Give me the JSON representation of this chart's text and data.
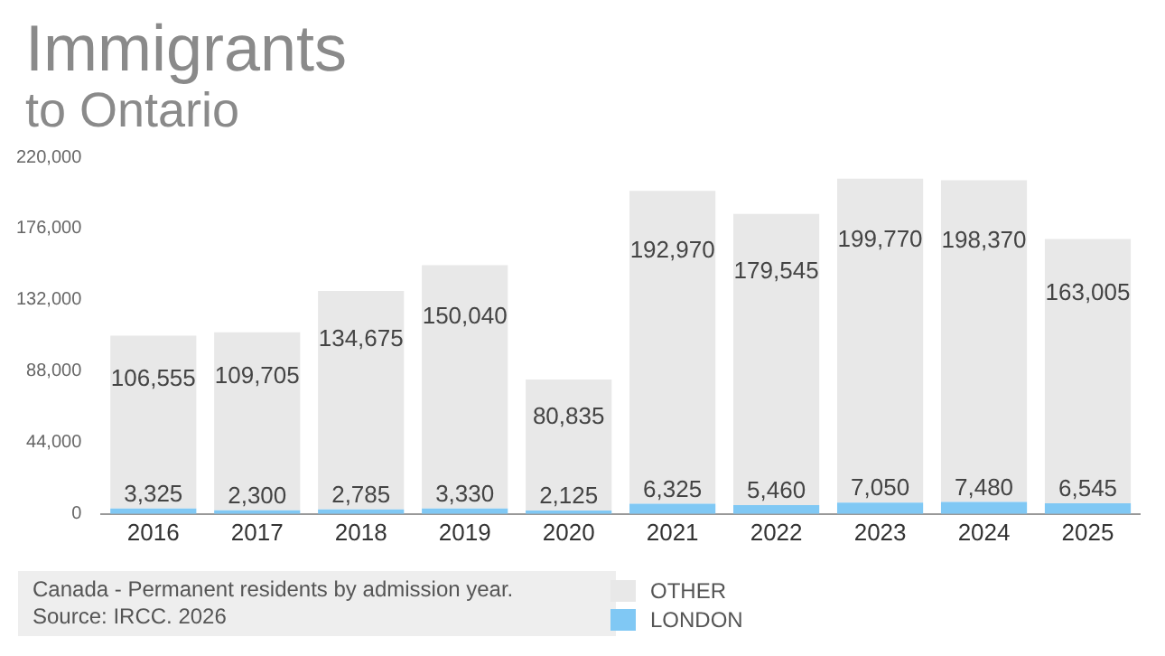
{
  "chart_data": {
    "type": "bar",
    "title": "Immigrants",
    "subtitle": "to Ontario",
    "categories": [
      "2016",
      "2017",
      "2018",
      "2019",
      "2020",
      "2021",
      "2022",
      "2023",
      "2024",
      "2025"
    ],
    "series": [
      {
        "name": "LONDON",
        "color": "#80c8f4",
        "values": [
          3325,
          2300,
          2785,
          3330,
          2125,
          6325,
          5460,
          7050,
          7480,
          6545
        ],
        "value_labels": [
          "3,325",
          "2,300",
          "2,785",
          "3,330",
          "2,125",
          "6,325",
          "5,460",
          "7,050",
          "7,480",
          "6,545"
        ]
      },
      {
        "name": "OTHER",
        "color": "#e8e8e8",
        "values": [
          106555,
          109705,
          134675,
          150040,
          80835,
          192970,
          179545,
          199770,
          198370,
          163005
        ],
        "value_labels": [
          "106,555",
          "109,705",
          "134,675",
          "150,040",
          "80,835",
          "192,970",
          "179,545",
          "199,770",
          "198,370",
          "163,005"
        ]
      }
    ],
    "stacked": true,
    "grid": false,
    "legend": "bottom",
    "ylim": [
      0,
      220000
    ],
    "yticks": [
      0,
      {
        "value": 44000,
        "label": "44,000"
      },
      {
        "value": 88000,
        "label": "88,000"
      },
      {
        "value": 132000,
        "label": "132,000"
      },
      {
        "value": 176000,
        "label": "176,000"
      },
      {
        "value": 220000,
        "label": "220,000"
      }
    ],
    "annotations": [
      "Canada - Permanent residents by admission year.",
      "Source: IRCC. 2026"
    ]
  }
}
